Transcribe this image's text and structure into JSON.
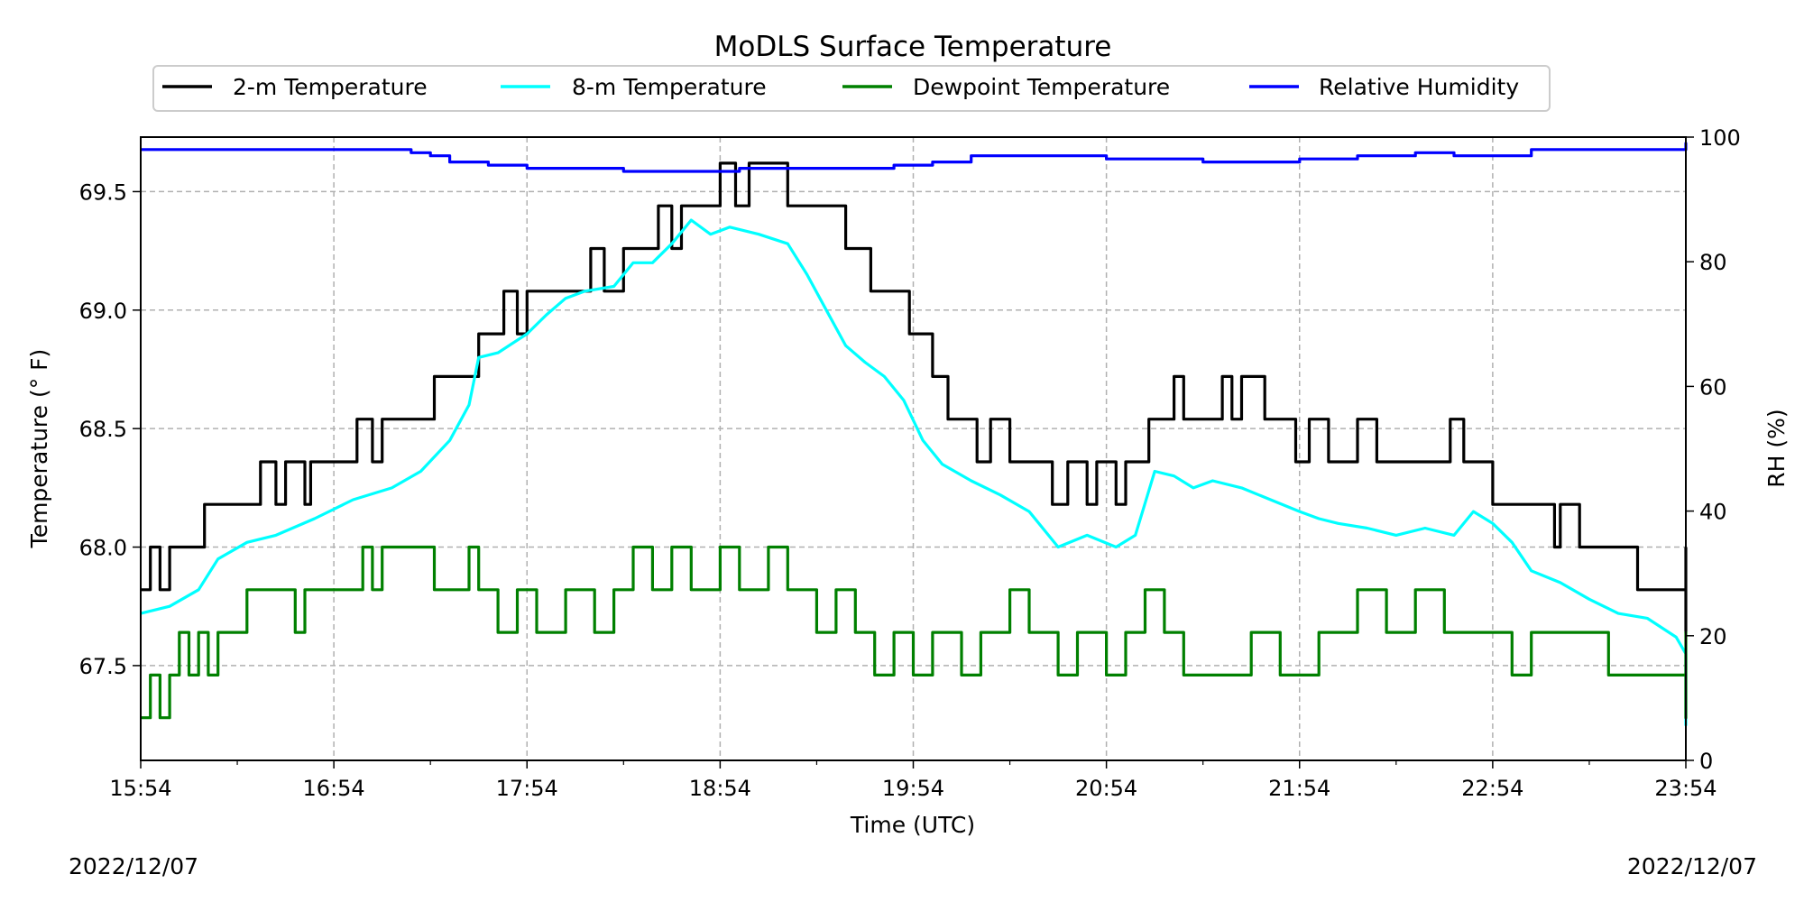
{
  "chart_data": {
    "type": "line",
    "title": "MoDLS Surface Temperature",
    "xlabel": "Time (UTC)",
    "ylabel": "Temperature ($^\\circ$F)",
    "ylabel_display": "Temperature (° F)",
    "y2label": "RH (%)",
    "x_ticks": [
      "15:54",
      "16:54",
      "17:54",
      "18:54",
      "19:54",
      "20:54",
      "21:54",
      "22:54",
      "23:54"
    ],
    "x_range_hours": [
      0,
      8
    ],
    "ylim": [
      67.1,
      69.73
    ],
    "y_ticks": [
      "67.5",
      "68.0",
      "68.5",
      "69.0",
      "69.5"
    ],
    "y2lim": [
      0,
      100
    ],
    "y2_ticks": [
      "0",
      "20",
      "40",
      "60",
      "80",
      "100"
    ],
    "date_left": "2022/12/07",
    "date_right": "2022/12/07",
    "grid": true,
    "legend_position": "top-center",
    "x_unit": "hours after 15:54 UTC",
    "series": [
      {
        "name": "2-m Temperature",
        "color": "#000000",
        "axis": "left",
        "points": [
          [
            0,
            67.82
          ],
          [
            0.05,
            68.0
          ],
          [
            0.1,
            67.82
          ],
          [
            0.15,
            68.0
          ],
          [
            0.3,
            68.0
          ],
          [
            0.33,
            68.18
          ],
          [
            0.6,
            68.18
          ],
          [
            0.62,
            68.36
          ],
          [
            0.7,
            68.18
          ],
          [
            0.75,
            68.36
          ],
          [
            0.85,
            68.18
          ],
          [
            0.88,
            68.36
          ],
          [
            1.1,
            68.36
          ],
          [
            1.12,
            68.54
          ],
          [
            1.2,
            68.36
          ],
          [
            1.25,
            68.54
          ],
          [
            1.5,
            68.54
          ],
          [
            1.52,
            68.72
          ],
          [
            1.7,
            68.72
          ],
          [
            1.75,
            68.9
          ],
          [
            1.85,
            68.9
          ],
          [
            1.88,
            69.08
          ],
          [
            1.95,
            68.9
          ],
          [
            2.0,
            69.08
          ],
          [
            2.3,
            69.08
          ],
          [
            2.33,
            69.26
          ],
          [
            2.4,
            69.08
          ],
          [
            2.5,
            69.26
          ],
          [
            2.65,
            69.26
          ],
          [
            2.68,
            69.44
          ],
          [
            2.75,
            69.26
          ],
          [
            2.8,
            69.44
          ],
          [
            2.95,
            69.44
          ],
          [
            3.0,
            69.62
          ],
          [
            3.08,
            69.44
          ],
          [
            3.15,
            69.62
          ],
          [
            3.3,
            69.62
          ],
          [
            3.35,
            69.44
          ],
          [
            3.6,
            69.44
          ],
          [
            3.65,
            69.26
          ],
          [
            3.75,
            69.26
          ],
          [
            3.78,
            69.08
          ],
          [
            3.95,
            69.08
          ],
          [
            3.98,
            68.9
          ],
          [
            4.05,
            68.9
          ],
          [
            4.1,
            68.72
          ],
          [
            4.15,
            68.72
          ],
          [
            4.18,
            68.54
          ],
          [
            4.3,
            68.54
          ],
          [
            4.33,
            68.36
          ],
          [
            4.4,
            68.54
          ],
          [
            4.5,
            68.36
          ],
          [
            4.7,
            68.36
          ],
          [
            4.72,
            68.18
          ],
          [
            4.8,
            68.36
          ],
          [
            4.9,
            68.18
          ],
          [
            4.95,
            68.36
          ],
          [
            5.05,
            68.18
          ],
          [
            5.1,
            68.36
          ],
          [
            5.2,
            68.36
          ],
          [
            5.22,
            68.54
          ],
          [
            5.35,
            68.72
          ],
          [
            5.4,
            68.54
          ],
          [
            5.6,
            68.72
          ],
          [
            5.65,
            68.54
          ],
          [
            5.7,
            68.72
          ],
          [
            5.8,
            68.72
          ],
          [
            5.82,
            68.54
          ],
          [
            5.95,
            68.54
          ],
          [
            5.98,
            68.36
          ],
          [
            6.05,
            68.54
          ],
          [
            6.15,
            68.36
          ],
          [
            6.3,
            68.54
          ],
          [
            6.4,
            68.36
          ],
          [
            6.75,
            68.36
          ],
          [
            6.78,
            68.54
          ],
          [
            6.85,
            68.36
          ],
          [
            6.98,
            68.36
          ],
          [
            7.0,
            68.18
          ],
          [
            7.3,
            68.18
          ],
          [
            7.32,
            68.0
          ],
          [
            7.35,
            68.18
          ],
          [
            7.42,
            68.18
          ],
          [
            7.45,
            68.0
          ],
          [
            7.73,
            68.0
          ],
          [
            7.75,
            67.82
          ],
          [
            8.08,
            67.82
          ],
          [
            8.12,
            67.64
          ],
          [
            8.55,
            67.64
          ],
          [
            8.58,
            67.82
          ],
          [
            8.65,
            67.64
          ],
          [
            8.75,
            67.82
          ],
          [
            8.82,
            67.82
          ],
          [
            8.88,
            68.0
          ]
        ]
      },
      {
        "name": "8-m Temperature",
        "color": "#00ffff",
        "axis": "left",
        "points": [
          [
            0,
            67.72
          ],
          [
            0.15,
            67.75
          ],
          [
            0.3,
            67.82
          ],
          [
            0.4,
            67.95
          ],
          [
            0.55,
            68.02
          ],
          [
            0.7,
            68.05
          ],
          [
            0.9,
            68.12
          ],
          [
            1.1,
            68.2
          ],
          [
            1.3,
            68.25
          ],
          [
            1.45,
            68.32
          ],
          [
            1.6,
            68.45
          ],
          [
            1.7,
            68.6
          ],
          [
            1.75,
            68.8
          ],
          [
            1.85,
            68.82
          ],
          [
            2.0,
            68.9
          ],
          [
            2.1,
            68.98
          ],
          [
            2.2,
            69.05
          ],
          [
            2.3,
            69.08
          ],
          [
            2.45,
            69.1
          ],
          [
            2.55,
            69.2
          ],
          [
            2.65,
            69.2
          ],
          [
            2.75,
            69.28
          ],
          [
            2.85,
            69.38
          ],
          [
            2.95,
            69.32
          ],
          [
            3.05,
            69.35
          ],
          [
            3.2,
            69.32
          ],
          [
            3.35,
            69.28
          ],
          [
            3.45,
            69.15
          ],
          [
            3.55,
            69.0
          ],
          [
            3.65,
            68.85
          ],
          [
            3.75,
            68.78
          ],
          [
            3.85,
            68.72
          ],
          [
            3.95,
            68.62
          ],
          [
            4.05,
            68.45
          ],
          [
            4.15,
            68.35
          ],
          [
            4.3,
            68.28
          ],
          [
            4.45,
            68.22
          ],
          [
            4.6,
            68.15
          ],
          [
            4.75,
            68.0
          ],
          [
            4.9,
            68.05
          ],
          [
            5.05,
            68.0
          ],
          [
            5.15,
            68.05
          ],
          [
            5.25,
            68.32
          ],
          [
            5.35,
            68.3
          ],
          [
            5.45,
            68.25
          ],
          [
            5.55,
            68.28
          ],
          [
            5.7,
            68.25
          ],
          [
            5.85,
            68.2
          ],
          [
            6.0,
            68.15
          ],
          [
            6.1,
            68.12
          ],
          [
            6.2,
            68.1
          ],
          [
            6.35,
            68.08
          ],
          [
            6.5,
            68.05
          ],
          [
            6.65,
            68.08
          ],
          [
            6.8,
            68.05
          ],
          [
            6.9,
            68.15
          ],
          [
            7.0,
            68.1
          ],
          [
            7.1,
            68.02
          ],
          [
            7.2,
            67.9
          ],
          [
            7.35,
            67.85
          ],
          [
            7.5,
            67.78
          ],
          [
            7.65,
            67.72
          ],
          [
            7.8,
            67.7
          ],
          [
            7.95,
            67.62
          ],
          [
            8.1,
            67.55
          ],
          [
            8.2,
            67.52
          ],
          [
            8.3,
            67.4
          ],
          [
            8.4,
            67.3
          ],
          [
            8.5,
            67.25
          ],
          [
            8.6,
            67.3
          ],
          [
            8.7,
            67.32
          ],
          [
            8.8,
            67.38
          ],
          [
            8.88,
            67.42
          ]
        ]
      },
      {
        "name": "Dewpoint Temperature",
        "color": "#008000",
        "axis": "left",
        "points": [
          [
            0,
            67.28
          ],
          [
            0.05,
            67.46
          ],
          [
            0.1,
            67.28
          ],
          [
            0.15,
            67.46
          ],
          [
            0.2,
            67.64
          ],
          [
            0.25,
            67.46
          ],
          [
            0.3,
            67.64
          ],
          [
            0.35,
            67.46
          ],
          [
            0.4,
            67.64
          ],
          [
            0.5,
            67.64
          ],
          [
            0.55,
            67.82
          ],
          [
            0.75,
            67.82
          ],
          [
            0.8,
            67.64
          ],
          [
            0.85,
            67.82
          ],
          [
            1.1,
            67.82
          ],
          [
            1.15,
            68.0
          ],
          [
            1.2,
            67.82
          ],
          [
            1.25,
            68.0
          ],
          [
            1.5,
            68.0
          ],
          [
            1.52,
            67.82
          ],
          [
            1.7,
            68.0
          ],
          [
            1.75,
            67.82
          ],
          [
            1.85,
            67.64
          ],
          [
            1.95,
            67.82
          ],
          [
            2.05,
            67.64
          ],
          [
            2.2,
            67.82
          ],
          [
            2.35,
            67.64
          ],
          [
            2.45,
            67.82
          ],
          [
            2.55,
            68.0
          ],
          [
            2.65,
            67.82
          ],
          [
            2.75,
            68.0
          ],
          [
            2.85,
            67.82
          ],
          [
            3.0,
            68.0
          ],
          [
            3.1,
            67.82
          ],
          [
            3.25,
            68.0
          ],
          [
            3.35,
            67.82
          ],
          [
            3.5,
            67.64
          ],
          [
            3.6,
            67.82
          ],
          [
            3.7,
            67.64
          ],
          [
            3.8,
            67.46
          ],
          [
            3.9,
            67.64
          ],
          [
            4.0,
            67.46
          ],
          [
            4.1,
            67.64
          ],
          [
            4.25,
            67.46
          ],
          [
            4.35,
            67.64
          ],
          [
            4.5,
            67.82
          ],
          [
            4.6,
            67.64
          ],
          [
            4.75,
            67.46
          ],
          [
            4.85,
            67.64
          ],
          [
            5.0,
            67.46
          ],
          [
            5.1,
            67.64
          ],
          [
            5.2,
            67.82
          ],
          [
            5.3,
            67.64
          ],
          [
            5.4,
            67.46
          ],
          [
            5.5,
            67.46
          ],
          [
            5.6,
            67.46
          ],
          [
            5.75,
            67.64
          ],
          [
            5.9,
            67.46
          ],
          [
            6.0,
            67.46
          ],
          [
            6.1,
            67.64
          ],
          [
            6.3,
            67.82
          ],
          [
            6.45,
            67.64
          ],
          [
            6.6,
            67.82
          ],
          [
            6.75,
            67.64
          ],
          [
            6.9,
            67.64
          ],
          [
            7.0,
            67.64
          ],
          [
            7.1,
            67.46
          ],
          [
            7.2,
            67.64
          ],
          [
            7.55,
            67.64
          ],
          [
            7.6,
            67.46
          ],
          [
            8.0,
            67.46
          ],
          [
            8.2,
            67.46
          ],
          [
            8.3,
            67.28
          ],
          [
            8.4,
            67.46
          ],
          [
            8.55,
            67.46
          ],
          [
            8.6,
            67.64
          ],
          [
            8.7,
            67.46
          ],
          [
            8.8,
            67.64
          ],
          [
            8.88,
            67.64
          ]
        ]
      },
      {
        "name": "Relative Humidity",
        "color": "#0000ff",
        "axis": "right",
        "points": [
          [
            0,
            98.0
          ],
          [
            1.0,
            98.0
          ],
          [
            1.3,
            98.0
          ],
          [
            1.4,
            97.5
          ],
          [
            1.5,
            97.0
          ],
          [
            1.6,
            96.0
          ],
          [
            1.8,
            95.5
          ],
          [
            2.0,
            95.0
          ],
          [
            2.3,
            95.0
          ],
          [
            2.5,
            94.5
          ],
          [
            2.8,
            94.5
          ],
          [
            3.1,
            95.0
          ],
          [
            3.4,
            95.0
          ],
          [
            3.6,
            95.0
          ],
          [
            3.9,
            95.5
          ],
          [
            4.1,
            96.0
          ],
          [
            4.3,
            97.0
          ],
          [
            4.7,
            97.0
          ],
          [
            5.0,
            96.5
          ],
          [
            5.3,
            96.5
          ],
          [
            5.5,
            96.0
          ],
          [
            5.8,
            96.0
          ],
          [
            6.0,
            96.5
          ],
          [
            6.3,
            97.0
          ],
          [
            6.6,
            97.5
          ],
          [
            6.8,
            97.0
          ],
          [
            7.0,
            97.0
          ],
          [
            7.2,
            98.0
          ],
          [
            7.6,
            98.0
          ],
          [
            8.0,
            98.0
          ],
          [
            8.1,
            98.5
          ],
          [
            8.2,
            99.0
          ],
          [
            8.6,
            99.0
          ],
          [
            8.8,
            99.0
          ],
          [
            8.88,
            98.5
          ]
        ]
      }
    ]
  }
}
